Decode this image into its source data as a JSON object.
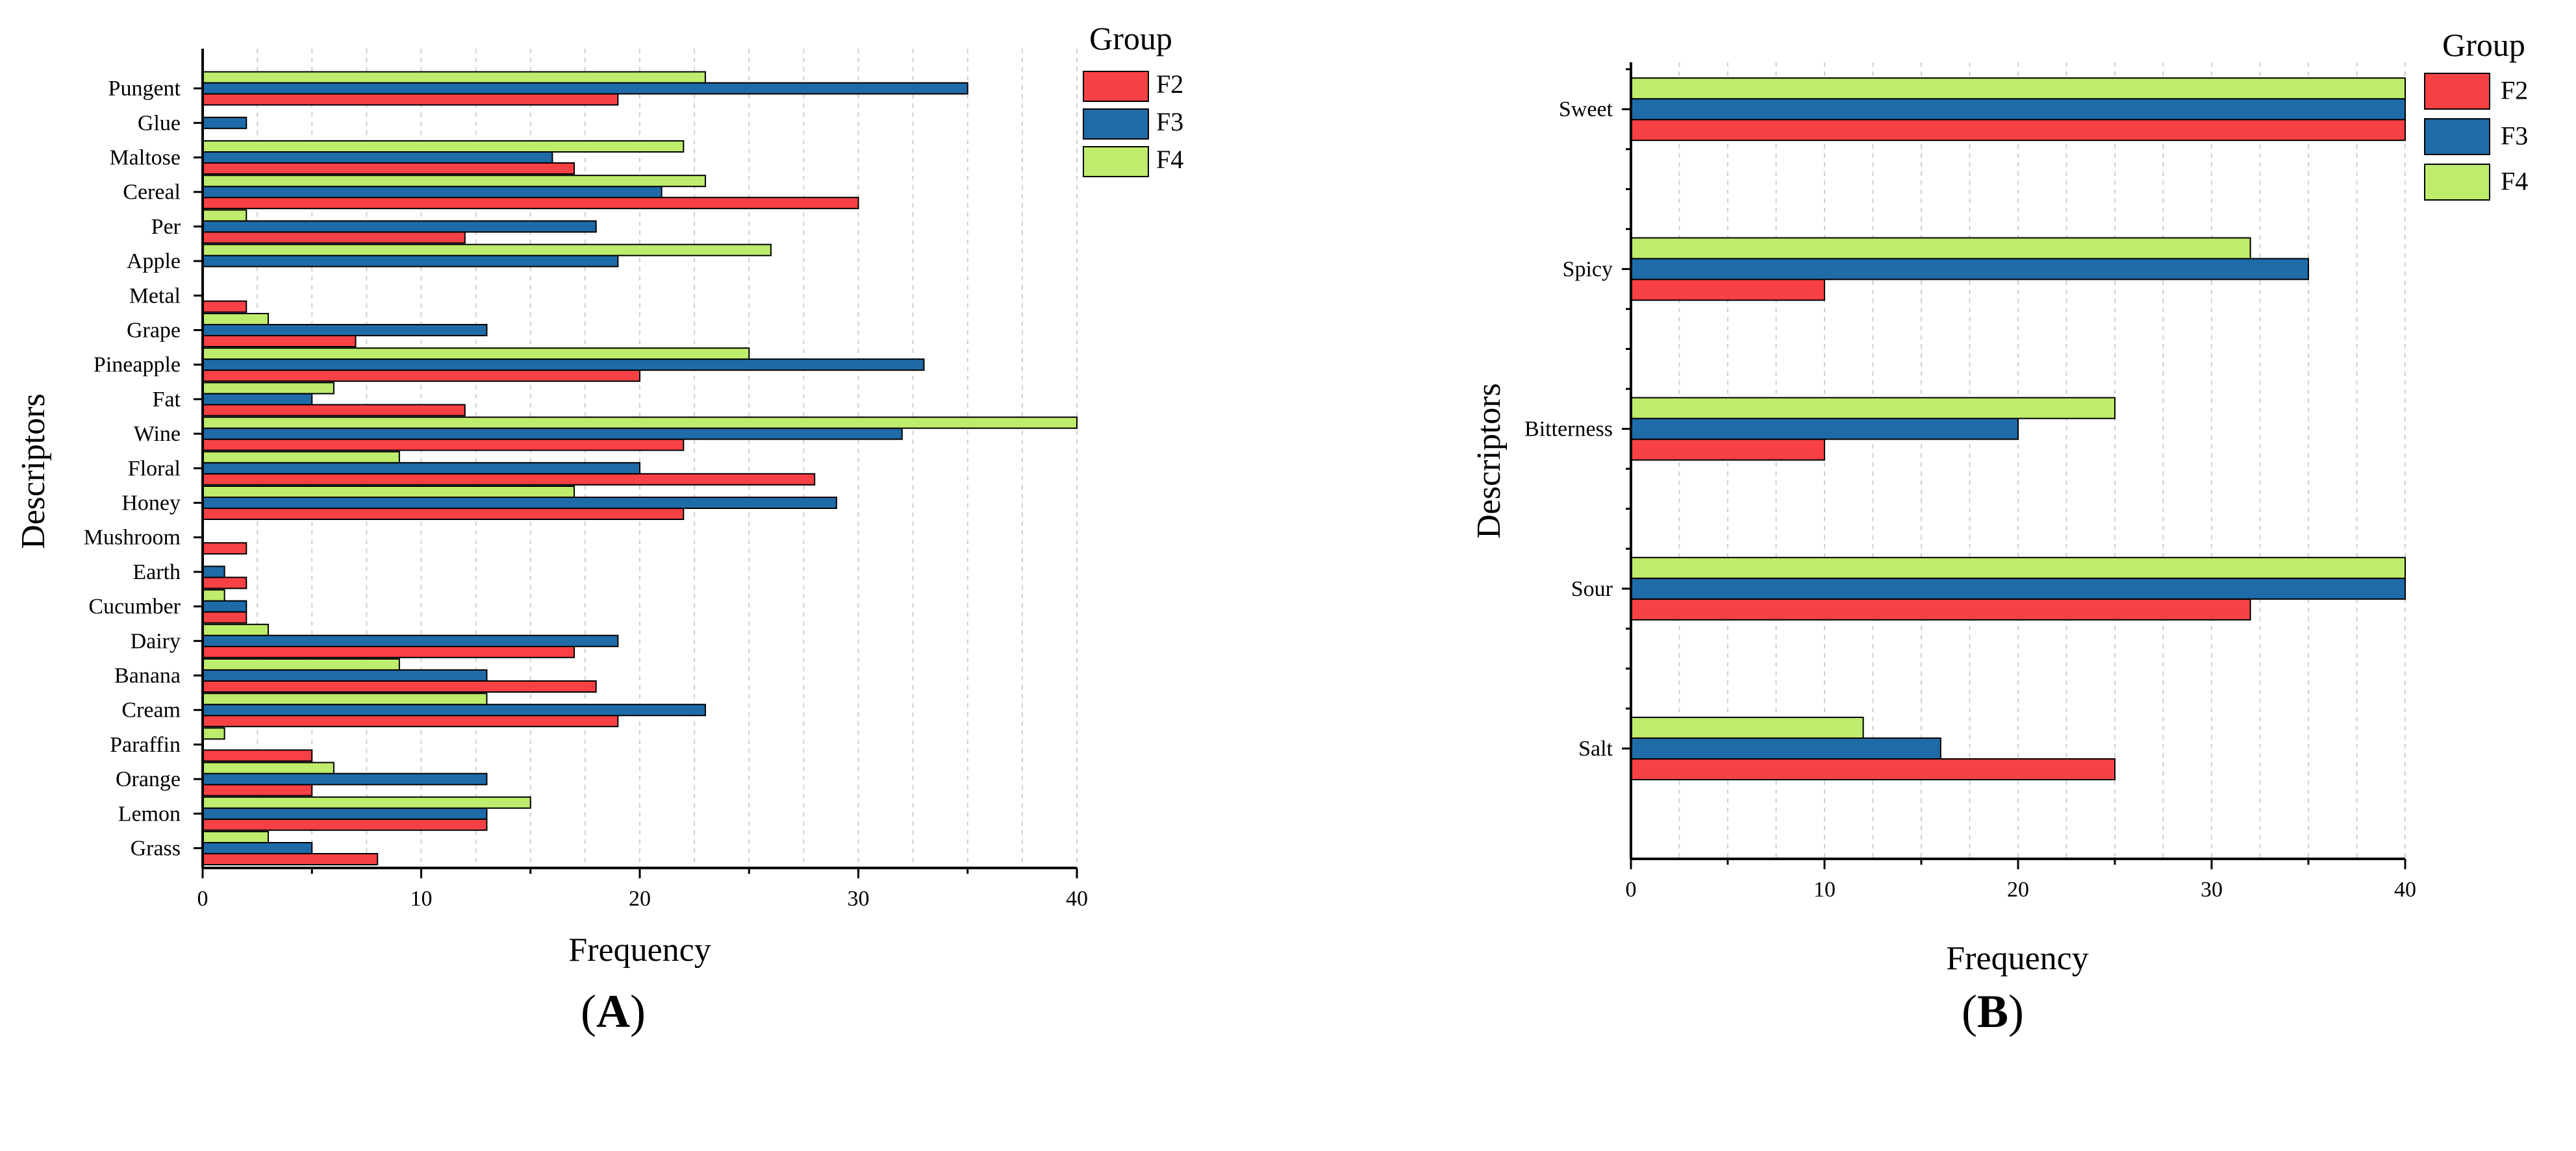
{
  "colors": {
    "F2": "#F74145",
    "F3": "#1F6BA8",
    "F4": "#BEEC6C"
  },
  "chart_data": [
    {
      "type": "bar",
      "orientation": "horizontal",
      "panel": "A",
      "xlabel": "Frequency",
      "ylabel": "Descriptors",
      "xlim": [
        0,
        40
      ],
      "xticks": [
        "0",
        "10",
        "20",
        "30",
        "40"
      ],
      "legend": {
        "title": "Group",
        "entries": [
          "F2",
          "F3",
          "F4"
        ],
        "placement": "top-right"
      },
      "categories": [
        "Grass",
        "Lemon",
        "Orange",
        "Paraffin",
        "Cream",
        "Banana",
        "Dairy",
        "Cucumber",
        "Earth",
        "Mushroom",
        "Honey",
        "Floral",
        "Wine",
        "Fat",
        "Pineapple",
        "Grape",
        "Metal",
        "Apple",
        "Per",
        "Cereal",
        "Maltose",
        "Glue",
        "Pungent"
      ],
      "series": [
        {
          "name": "F2",
          "values": [
            8,
            13,
            5,
            5,
            19,
            18,
            17,
            2,
            2,
            2,
            22,
            28,
            22,
            12,
            20,
            7,
            2,
            0,
            12,
            30,
            17,
            0,
            19
          ]
        },
        {
          "name": "F3",
          "values": [
            5,
            13,
            13,
            0,
            23,
            13,
            19,
            2,
            1,
            0,
            29,
            20,
            32,
            5,
            33,
            13,
            0,
            19,
            18,
            21,
            16,
            2,
            35
          ]
        },
        {
          "name": "F4",
          "values": [
            3,
            15,
            6,
            1,
            13,
            9,
            3,
            1,
            0,
            0,
            17,
            9,
            40,
            6,
            25,
            3,
            0,
            26,
            2,
            23,
            22,
            0,
            23
          ]
        }
      ]
    },
    {
      "type": "bar",
      "orientation": "horizontal",
      "panel": "B",
      "xlabel": "Frequency",
      "ylabel": "Descriptors",
      "xlim": [
        0,
        40
      ],
      "xticks": [
        "0",
        "10",
        "20",
        "30",
        "40"
      ],
      "legend": {
        "title": "Group",
        "entries": [
          "F2",
          "F3",
          "F4"
        ],
        "placement": "top-right"
      },
      "categories": [
        "Salt",
        "Sour",
        "Bitterness",
        "Spicy",
        "Sweet"
      ],
      "series": [
        {
          "name": "F2",
          "values": [
            25,
            32,
            10,
            10,
            40
          ]
        },
        {
          "name": "F3",
          "values": [
            16,
            40,
            20,
            35,
            40
          ]
        },
        {
          "name": "F4",
          "values": [
            12,
            40,
            25,
            32,
            40
          ]
        }
      ]
    }
  ]
}
